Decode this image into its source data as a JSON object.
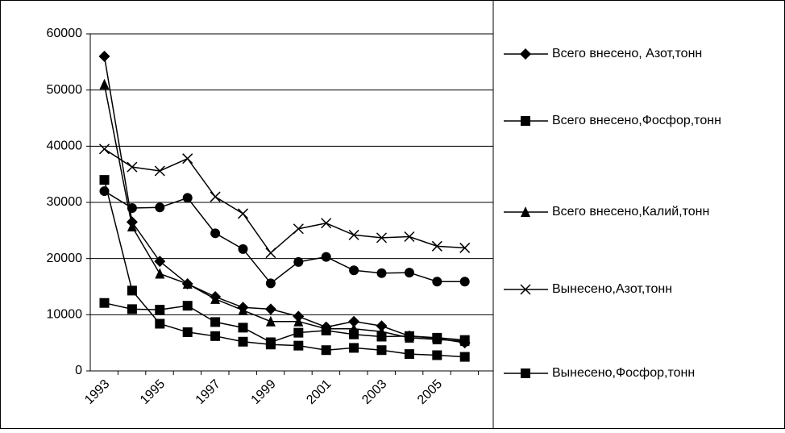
{
  "chart_data": {
    "type": "line",
    "categories": [
      "1993",
      null,
      "1995",
      null,
      "1997",
      null,
      "1999",
      null,
      "2001",
      null,
      "2003",
      null,
      "2005",
      null
    ],
    "ylim": [
      0,
      60000
    ],
    "yticks": [
      0,
      10000,
      20000,
      30000,
      40000,
      50000,
      60000
    ],
    "grid": true,
    "series": [
      {
        "name": "Всего внесено, Азот,тонн",
        "color": "#000000",
        "marker": "diamond",
        "values": [
          56000,
          26500,
          19500,
          15500,
          13200,
          11300,
          11000,
          9700,
          7800,
          8800,
          8000,
          6200,
          5800,
          5000
        ]
      },
      {
        "name": "Всего внесено,Фосфор,тонн",
        "color": "#000000",
        "marker": "square",
        "values": [
          34000,
          14300,
          8400,
          6900,
          6200,
          5200,
          4700,
          4500,
          3700,
          4100,
          3700,
          3000,
          2800,
          2500
        ]
      },
      {
        "name": "Всего внесено,Калий,тонн",
        "color": "#000000",
        "marker": "triangle",
        "values": [
          51000,
          25700,
          17300,
          15500,
          12800,
          10800,
          8800,
          8800,
          7500,
          7500,
          7000,
          5900,
          5600,
          5300
        ]
      },
      {
        "name": "Вынесено,Азот,тонн",
        "color": "#000000",
        "marker": "x",
        "values": [
          39500,
          36300,
          35600,
          37800,
          31000,
          28000,
          21000,
          25300,
          26300,
          24200,
          23700,
          23900,
          22200,
          21900
        ]
      },
      {
        "name": "Вынесено,Фосфор,тонн",
        "color": "#000000",
        "marker": "square",
        "values": [
          12100,
          11000,
          10900,
          11600,
          8700,
          7700,
          5100,
          6800,
          7200,
          6500,
          6100,
          6200,
          5900,
          5500
        ]
      },
      {
        "color": "#000000",
        "marker": "circle",
        "values": [
          32000,
          29000,
          29100,
          30800,
          24500,
          21700,
          15600,
          19400,
          20300,
          17900,
          17400,
          17500,
          15900,
          15900
        ]
      }
    ]
  }
}
